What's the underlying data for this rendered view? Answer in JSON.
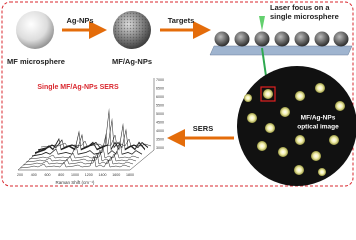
{
  "steps": {
    "microsphere_label": "MF microsphere",
    "arrow1_label": "Ag-NPs",
    "coated_label": "MF/Ag-NPs",
    "arrow2_label": "Targets",
    "laser_label": [
      "Laser focus on a",
      "single microsphere"
    ],
    "arrow3_label": "SERS"
  },
  "optical_image": {
    "label": [
      "MF/Ag-NPs",
      "optical image"
    ]
  },
  "spectra_plot": {
    "title": "Single MF/Ag-NPs SERS",
    "x_label": "Raman Shift (cm⁻¹)",
    "x_ticks": [
      "200",
      "400",
      "600",
      "800",
      "1000",
      "1200",
      "1400",
      "1600",
      "1800"
    ],
    "y_ticks": [
      "3000",
      "3500",
      "4000",
      "4500",
      "5000",
      "5500",
      "6000",
      "6500",
      "7000"
    ]
  }
}
